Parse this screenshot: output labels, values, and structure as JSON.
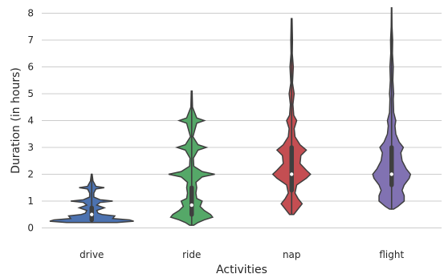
{
  "chart_data": {
    "type": "violin",
    "title": "",
    "xlabel": "Activities",
    "ylabel": "Duration (in hours)",
    "ylim": [
      0,
      8.2
    ],
    "yticks": [
      0,
      1,
      2,
      3,
      4,
      5,
      6,
      7,
      8
    ],
    "grid": "horizontal",
    "categories": [
      "drive",
      "ride",
      "nap",
      "flight"
    ],
    "series": [
      {
        "category": "drive",
        "color": "#4c72b0",
        "min": 0.2,
        "q1": 0.3,
        "median": 0.5,
        "q3": 0.75,
        "max": 2.0,
        "density": [
          [
            0.2,
            0.6
          ],
          [
            0.25,
            1.0
          ],
          [
            0.3,
            0.9
          ],
          [
            0.35,
            0.5
          ],
          [
            0.45,
            0.55
          ],
          [
            0.5,
            0.25
          ],
          [
            0.55,
            0.15
          ],
          [
            0.65,
            0.12
          ],
          [
            0.75,
            0.3
          ],
          [
            0.85,
            0.12
          ],
          [
            0.95,
            0.2
          ],
          [
            1.0,
            0.5
          ],
          [
            1.05,
            0.2
          ],
          [
            1.15,
            0.05
          ],
          [
            1.3,
            0.05
          ],
          [
            1.45,
            0.1
          ],
          [
            1.5,
            0.3
          ],
          [
            1.55,
            0.1
          ],
          [
            1.75,
            0.03
          ],
          [
            2.0,
            0.01
          ]
        ]
      },
      {
        "category": "ride",
        "color": "#55a868",
        "min": 0.1,
        "q1": 0.5,
        "median": 0.85,
        "q3": 1.5,
        "max": 5.1,
        "density": [
          [
            0.1,
            0.05
          ],
          [
            0.2,
            0.15
          ],
          [
            0.3,
            0.3
          ],
          [
            0.4,
            0.5
          ],
          [
            0.5,
            0.45
          ],
          [
            0.65,
            0.3
          ],
          [
            0.8,
            0.2
          ],
          [
            1.0,
            0.25
          ],
          [
            1.1,
            0.12
          ],
          [
            1.3,
            0.1
          ],
          [
            1.5,
            0.12
          ],
          [
            1.7,
            0.1
          ],
          [
            1.9,
            0.25
          ],
          [
            2.0,
            0.55
          ],
          [
            2.1,
            0.25
          ],
          [
            2.3,
            0.05
          ],
          [
            2.6,
            0.04
          ],
          [
            2.9,
            0.15
          ],
          [
            3.0,
            0.35
          ],
          [
            3.1,
            0.15
          ],
          [
            3.4,
            0.03
          ],
          [
            3.9,
            0.12
          ],
          [
            4.0,
            0.3
          ],
          [
            4.1,
            0.12
          ],
          [
            4.5,
            0.02
          ],
          [
            5.1,
            0.01
          ]
        ]
      },
      {
        "category": "nap",
        "color": "#c44e52",
        "min": 0.5,
        "q1": 1.4,
        "median": 2.0,
        "q3": 3.0,
        "max": 7.8,
        "density": [
          [
            0.5,
            0.05
          ],
          [
            0.7,
            0.15
          ],
          [
            0.9,
            0.25
          ],
          [
            1.1,
            0.15
          ],
          [
            1.3,
            0.08
          ],
          [
            1.6,
            0.12
          ],
          [
            1.85,
            0.35
          ],
          [
            2.0,
            0.45
          ],
          [
            2.15,
            0.35
          ],
          [
            2.4,
            0.2
          ],
          [
            2.7,
            0.22
          ],
          [
            2.9,
            0.35
          ],
          [
            3.1,
            0.2
          ],
          [
            3.4,
            0.08
          ],
          [
            3.7,
            0.06
          ],
          [
            3.9,
            0.1
          ],
          [
            4.0,
            0.12
          ],
          [
            4.2,
            0.05
          ],
          [
            4.6,
            0.03
          ],
          [
            5.0,
            0.06
          ],
          [
            5.4,
            0.02
          ],
          [
            6.0,
            0.04
          ],
          [
            6.5,
            0.015
          ],
          [
            7.0,
            0.02
          ],
          [
            7.8,
            0.01
          ]
        ]
      },
      {
        "category": "flight",
        "color": "#8172b2",
        "min": 0.7,
        "q1": 1.6,
        "median": 2.0,
        "q3": 3.0,
        "max": 8.2,
        "density": [
          [
            0.7,
            0.05
          ],
          [
            0.8,
            0.15
          ],
          [
            1.0,
            0.3
          ],
          [
            1.2,
            0.3
          ],
          [
            1.4,
            0.25
          ],
          [
            1.6,
            0.3
          ],
          [
            1.85,
            0.42
          ],
          [
            2.0,
            0.45
          ],
          [
            2.2,
            0.35
          ],
          [
            2.5,
            0.25
          ],
          [
            2.8,
            0.22
          ],
          [
            3.0,
            0.28
          ],
          [
            3.2,
            0.18
          ],
          [
            3.5,
            0.1
          ],
          [
            3.8,
            0.08
          ],
          [
            4.0,
            0.1
          ],
          [
            4.3,
            0.05
          ],
          [
            4.8,
            0.04
          ],
          [
            5.0,
            0.05
          ],
          [
            5.5,
            0.03
          ],
          [
            6.0,
            0.04
          ],
          [
            6.5,
            0.02
          ],
          [
            7.0,
            0.025
          ],
          [
            7.5,
            0.01
          ],
          [
            8.2,
            0.005
          ]
        ]
      }
    ]
  }
}
